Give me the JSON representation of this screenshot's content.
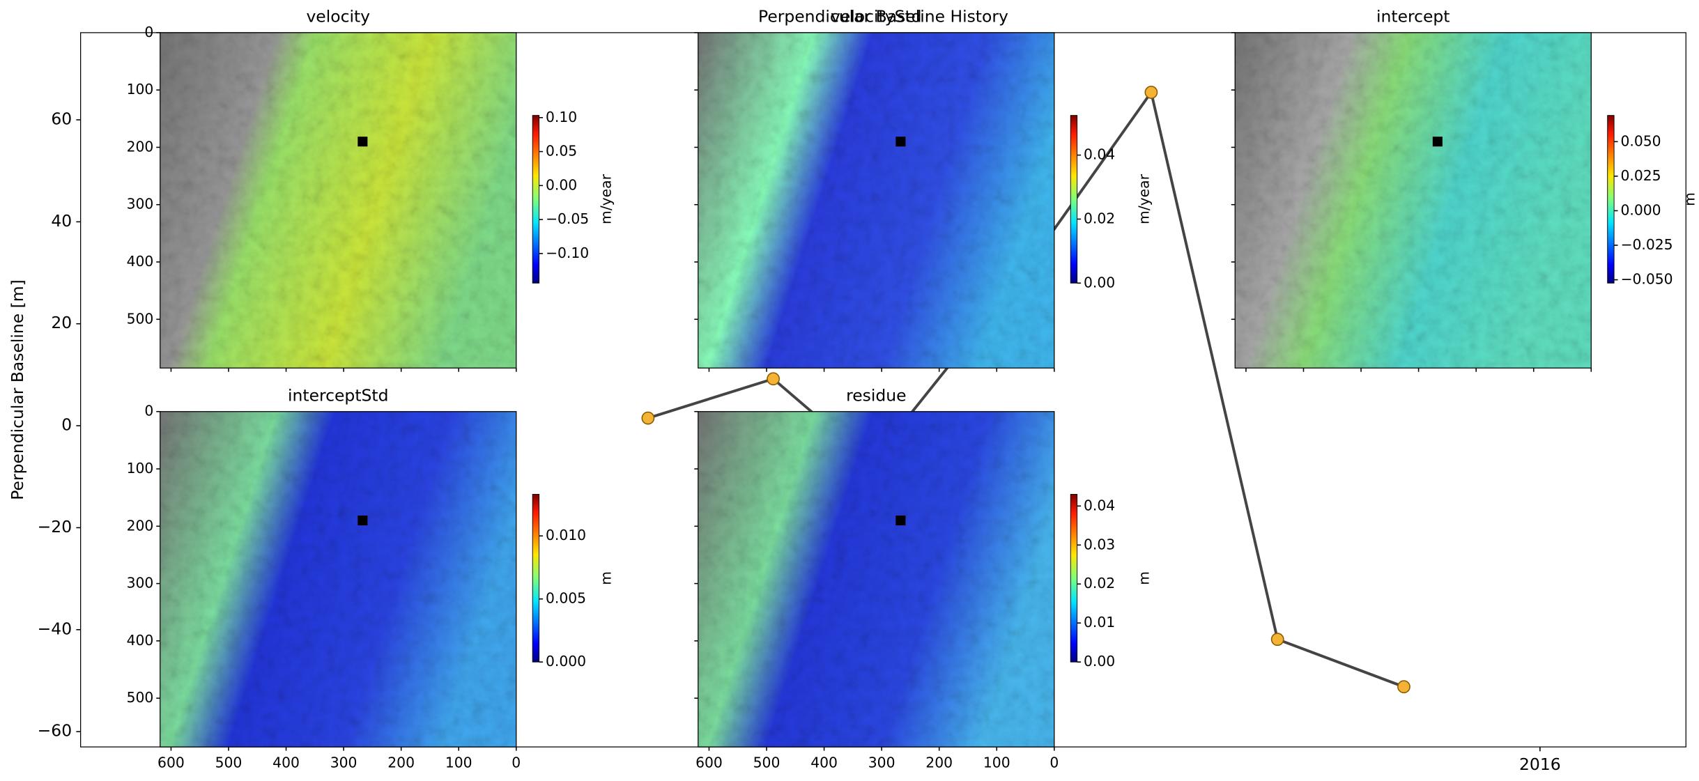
{
  "chart_data": [
    {
      "type": "line",
      "title": "Perpendicular Baseline History",
      "y_label": "Perpendicular Baseline [m]",
      "x": [
        2015.181,
        2015.296,
        2015.386,
        2015.526,
        2015.643,
        2015.759,
        2015.875
      ],
      "values": [
        1.5,
        9.2,
        -7.3,
        30.1,
        65.4,
        -41.9,
        -51.2
      ],
      "color": "#444444",
      "marker_color": "#f5b335",
      "xlim": [
        2014.66,
        2016.134
      ],
      "xticks": [
        2016
      ],
      "ylim": [
        -63,
        77.1
      ],
      "yticks": [
        {
          "value": -60,
          "label": "−60"
        },
        {
          "value": -40,
          "label": "−40"
        },
        {
          "value": -20,
          "label": "−20"
        },
        0,
        20,
        40,
        60
      ]
    },
    {
      "type": "image",
      "panels": [
        {
          "title": "velocity",
          "xlim": [
            619,
            0
          ],
          "ylim": [
            0,
            585
          ],
          "xticks": [
            600,
            500,
            400,
            300,
            200,
            100,
            0
          ],
          "yticks": [
            0,
            100,
            200,
            300,
            400,
            500
          ],
          "marker": [
            267,
            190
          ],
          "colorbar": {
            "label": "m/year",
            "lim": [
              -0.1435,
              0.1032
            ],
            "ticks": [
              {
                "value": 0.1,
                "label": "0.10"
              },
              0.05,
              {
                "value": 0,
                "label": "0.00"
              },
              {
                "value": -0.05,
                "label": "−0.05"
              },
              {
                "value": -0.1,
                "label": "−0.10"
              }
            ]
          }
        },
        {
          "title": "velocityStd",
          "xlim": [
            619,
            0
          ],
          "ylim": [
            0,
            585
          ],
          "xticks": [
            600,
            500,
            400,
            300,
            200,
            100,
            0
          ],
          "yticks": [
            0,
            100,
            200,
            300,
            400,
            500
          ],
          "marker": [
            267,
            190
          ],
          "colorbar": {
            "label": "m/year",
            "lim": [
              0,
              0.0524
            ],
            "ticks": [
              {
                "value": 0,
                "label": "0.00"
              },
              0.02,
              0.04
            ]
          }
        },
        {
          "title": "intercept",
          "xlim": [
            619,
            0
          ],
          "ylim": [
            0,
            585
          ],
          "xticks": [
            600,
            500,
            400,
            300,
            200,
            100,
            0
          ],
          "yticks": [
            0,
            100,
            200,
            300,
            400,
            500
          ],
          "marker": [
            267,
            190
          ],
          "colorbar": {
            "label": "m",
            "lim": [
              -0.0524,
              0.069
            ],
            "ticks": [
              {
                "value": 0.05,
                "label": "0.050"
              },
              0.025,
              {
                "value": 0,
                "label": "0.000"
              },
              {
                "value": -0.025,
                "label": "−0.025"
              },
              {
                "value": -0.05,
                "label": "−0.050"
              }
            ]
          }
        },
        {
          "title": "interceptStd",
          "xlim": [
            619,
            0
          ],
          "ylim": [
            0,
            585
          ],
          "xticks": [
            600,
            500,
            400,
            300,
            200,
            100,
            0
          ],
          "yticks": [
            0,
            100,
            200,
            300,
            400,
            500
          ],
          "marker": [
            267,
            190
          ],
          "colorbar": {
            "label": "m",
            "lim": [
              0,
              0.0133
            ],
            "ticks": [
              {
                "value": 0,
                "label": "0.000"
              },
              0.005,
              {
                "value": 0.01,
                "label": "0.010"
              }
            ]
          }
        },
        {
          "title": "residue",
          "xlim": [
            619,
            0
          ],
          "ylim": [
            0,
            585
          ],
          "xticks": [
            600,
            500,
            400,
            300,
            200,
            100,
            0
          ],
          "yticks": [
            0,
            100,
            200,
            300,
            400,
            500
          ],
          "marker": [
            267,
            190
          ],
          "colorbar": {
            "label": "m",
            "lim": [
              0,
              0.043
            ],
            "ticks": [
              {
                "value": 0,
                "label": "0.00"
              },
              0.01,
              0.02,
              0.03,
              0.04
            ]
          }
        }
      ]
    }
  ]
}
